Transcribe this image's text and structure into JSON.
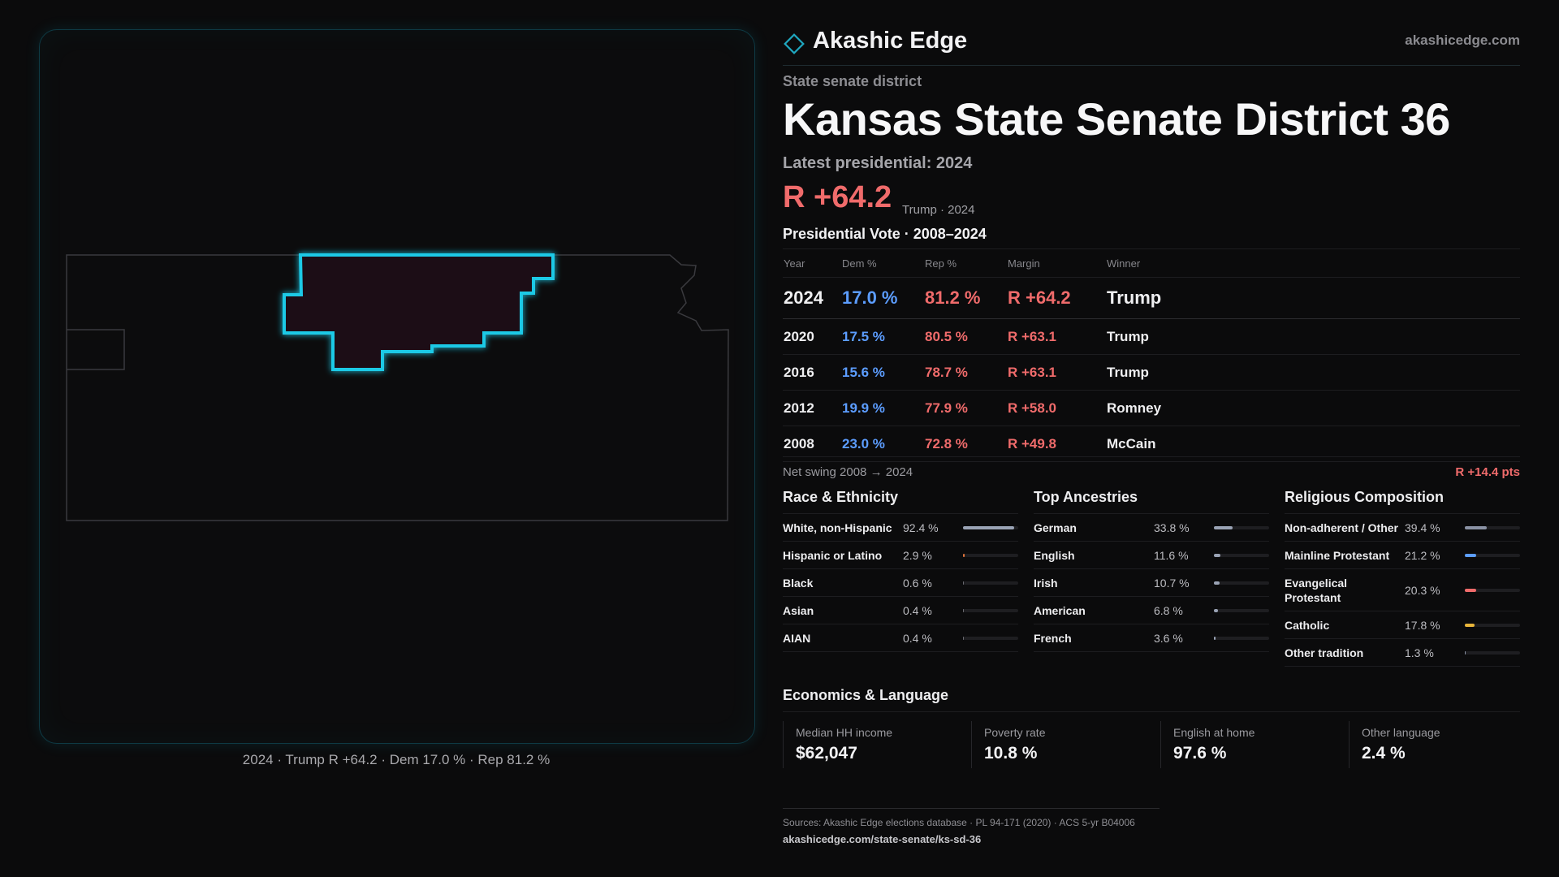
{
  "brand": {
    "name": "Akashic Edge",
    "site": "akashicedge.com"
  },
  "map": {
    "caption": "2024 · Trump R +64.2 · Dem 17.0 % · Rep 81.2 %",
    "highlight_color": "#1fc9e6"
  },
  "header": {
    "kicker": "State senate district",
    "title": "Kansas State Senate District 36",
    "latest_label": "Latest presidential: 2024",
    "margin": "R +64.2",
    "margin_sub": "Trump · 2024"
  },
  "votes": {
    "title": "Presidential Vote · 2008–2024",
    "columns": [
      "Year",
      "Dem %",
      "Rep %",
      "Margin",
      "Winner"
    ],
    "rows": [
      {
        "year": "2024",
        "dem": "17.0 %",
        "rep": "81.2 %",
        "margin": "R +64.2",
        "winner": "Trump"
      },
      {
        "year": "2020",
        "dem": "17.5 %",
        "rep": "80.5 %",
        "margin": "R +63.1",
        "winner": "Trump"
      },
      {
        "year": "2016",
        "dem": "15.6 %",
        "rep": "78.7 %",
        "margin": "R +63.1",
        "winner": "Trump"
      },
      {
        "year": "2012",
        "dem": "19.9 %",
        "rep": "77.9 %",
        "margin": "R +58.0",
        "winner": "Romney"
      },
      {
        "year": "2008",
        "dem": "23.0 %",
        "rep": "72.8 %",
        "margin": "R +49.8",
        "winner": "McCain"
      }
    ],
    "swing_label": "Net swing 2008 → 2024",
    "swing_value": "R +14.4 pts"
  },
  "race": {
    "title": "Race & Ethnicity",
    "items": [
      {
        "label": "White, non-Hispanic",
        "pct": "92.4 %",
        "share": 0.924,
        "color": "#9aa3b5"
      },
      {
        "label": "Hispanic or Latino",
        "pct": "2.9 %",
        "share": 0.029,
        "color": "#e0733a"
      },
      {
        "label": "Black",
        "pct": "0.6 %",
        "share": 0.006,
        "color": "#6a6a70"
      },
      {
        "label": "Asian",
        "pct": "0.4 %",
        "share": 0.004,
        "color": "#6a6a70"
      },
      {
        "label": "AIAN",
        "pct": "0.4 %",
        "share": 0.004,
        "color": "#6a6a70"
      }
    ]
  },
  "ancestry": {
    "title": "Top Ancestries",
    "items": [
      {
        "label": "German",
        "pct": "33.8 %",
        "share": 0.338,
        "color": "#9aa3b5"
      },
      {
        "label": "English",
        "pct": "11.6 %",
        "share": 0.116,
        "color": "#9aa3b5"
      },
      {
        "label": "Irish",
        "pct": "10.7 %",
        "share": 0.107,
        "color": "#9aa3b5"
      },
      {
        "label": "American",
        "pct": "6.8 %",
        "share": 0.068,
        "color": "#9aa3b5"
      },
      {
        "label": "French",
        "pct": "3.6 %",
        "share": 0.036,
        "color": "#9aa3b5"
      }
    ]
  },
  "religion": {
    "title": "Religious Composition",
    "items": [
      {
        "label": "Non-adherent / Other",
        "pct": "39.4 %",
        "share": 0.394,
        "color": "#8a92a4"
      },
      {
        "label": "Mainline Protestant",
        "pct": "21.2 %",
        "share": 0.212,
        "color": "#5c9dff"
      },
      {
        "label": "Evangelical Protestant",
        "pct": "20.3 %",
        "share": 0.203,
        "color": "#f06b6b"
      },
      {
        "label": "Catholic",
        "pct": "17.8 %",
        "share": 0.178,
        "color": "#e8b53a"
      },
      {
        "label": "Other tradition",
        "pct": "1.3 %",
        "share": 0.013,
        "color": "#8a92a4"
      }
    ]
  },
  "economics": {
    "title": "Economics & Language",
    "stats": [
      {
        "label": "Median HH income",
        "value": "$62,047"
      },
      {
        "label": "Poverty rate",
        "value": "10.8 %"
      },
      {
        "label": "English at home",
        "value": "97.6 %"
      },
      {
        "label": "Other language",
        "value": "2.4 %"
      }
    ]
  },
  "sources": {
    "text": "Sources: Akashic Edge elections database · PL 94-171 (2020) · ACS 5-yr B04006",
    "url": "akashicedge.com/state-senate/ks-sd-36"
  }
}
